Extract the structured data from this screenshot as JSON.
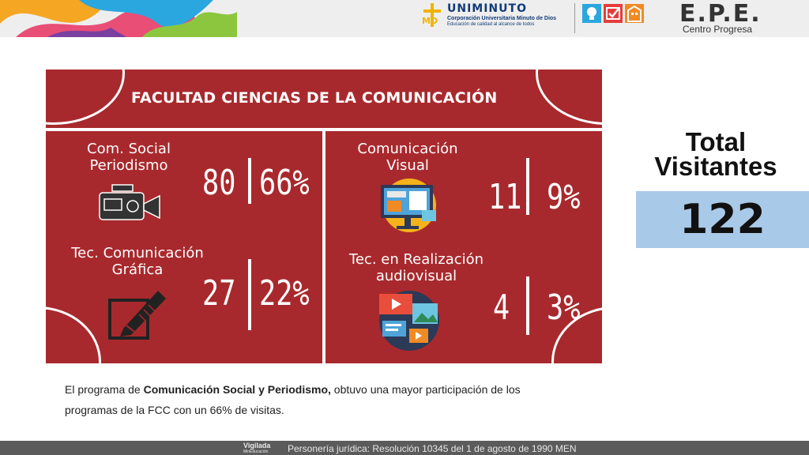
{
  "header": {
    "university": {
      "name": "UNIMINUTO",
      "subtitle": "Corporación Universitaria Minuto de Dios",
      "tagline": "Educación de calidad al alcance de todos",
      "mark": "MD"
    },
    "center": {
      "title": "E.P.E.",
      "subtitle": "Centro Progresa"
    }
  },
  "infographic": {
    "title": "FACULTAD CIENCIAS DE LA COMUNICACIÓN",
    "programs": [
      {
        "label_line1": "Com. Social",
        "label_line2": "Periodismo",
        "count": "80",
        "percent": "66%",
        "icon": "video-camera-icon"
      },
      {
        "label_line1": "Comunicación",
        "label_line2": "Visual",
        "count": "11",
        "percent": "9%",
        "icon": "monitor-design-icon"
      },
      {
        "label_line1": "Tec. Comunicación",
        "label_line2": "Gráfica",
        "count": "27",
        "percent": "22%",
        "icon": "pen-drawing-icon"
      },
      {
        "label_line1": "Tec. en Realización",
        "label_line2": "audiovisual",
        "count": "4",
        "percent": "3%",
        "icon": "media-collage-icon"
      }
    ]
  },
  "total": {
    "title_line1": "Total",
    "title_line2": "Visitantes",
    "value": "122"
  },
  "caption": {
    "part1": "El programa de ",
    "bold": "Comunicación Social y Periodismo,",
    "part2": " obtuvo una mayor participación de los programas de la FCC con un 66% de visitas."
  },
  "footer": {
    "logo_line1": "Vigilada",
    "logo_line2": "MinEducación",
    "text": "Personería jurídica: Resolución 10345 del 1 de agosto de 1990 MEN"
  },
  "colors": {
    "panel": "#a8292d",
    "total_box": "#a9c9e8",
    "brand_blue": "#123b79"
  }
}
